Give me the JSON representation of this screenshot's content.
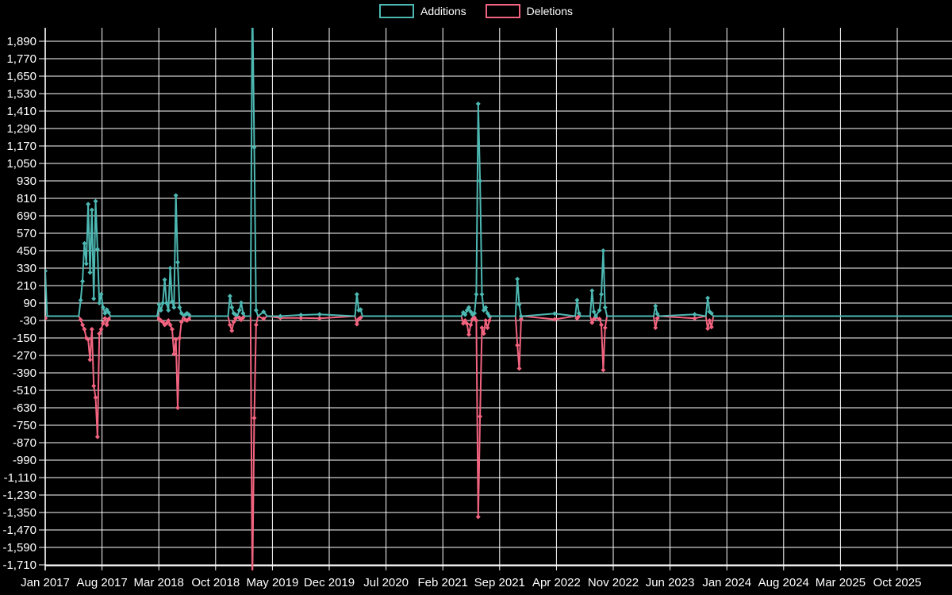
{
  "legend": {
    "additions_label": "Additions",
    "deletions_label": "Deletions"
  },
  "colors": {
    "additions": "#4db8b2",
    "deletions": "#f2637f",
    "background": "#000000",
    "grid": "#ffffff",
    "axis": "#ffffff",
    "text": "#ffffff"
  },
  "chart_data": {
    "type": "line",
    "title": "",
    "xlabel": "",
    "ylabel": "",
    "grid": true,
    "legend_position": "top-center",
    "x_axis": {
      "tick_labels": [
        "Jan 2017",
        "Aug 2017",
        "Mar 2018",
        "Oct 2018",
        "May 2019",
        "Dec 2019",
        "Jul 2020",
        "Feb 2021",
        "Sep 2021",
        "Apr 2022",
        "Nov 2022",
        "Jun 2023",
        "Jan 2024",
        "Aug 2024",
        "Mar 2025",
        "Oct 2025"
      ],
      "months_per_tick": 7
    },
    "y_axis": {
      "min": -1710,
      "max": 1890,
      "step": 120,
      "tick_labels": [
        "1,890",
        "1,770",
        "1,650",
        "1,530",
        "1,410",
        "1,290",
        "1,170",
        "1,050",
        "930",
        "810",
        "690",
        "570",
        "450",
        "330",
        "210",
        "90",
        "-30",
        "-150",
        "-270",
        "-390",
        "-510",
        "-630",
        "-750",
        "-870",
        "-990",
        "-1,110",
        "-1,230",
        "-1,350",
        "-1,470",
        "-1,590",
        "-1,710"
      ]
    },
    "series_names": [
      "Additions",
      "Deletions"
    ],
    "points_format": "[week_index_from_Jan_2017, additions, deletions, optional 0 = anchor point without marker]; peaks beyond axis range are clipped in the plot",
    "points": [
      [
        0,
        310,
        -15
      ],
      [
        1,
        0,
        0,
        0
      ],
      [
        18,
        0,
        0,
        0
      ],
      [
        19,
        110,
        -25
      ],
      [
        20,
        240,
        -60
      ],
      [
        21,
        500,
        -90
      ],
      [
        22,
        360,
        -150
      ],
      [
        23,
        770,
        -160
      ],
      [
        24,
        300,
        -300
      ],
      [
        25,
        730,
        -90
      ],
      [
        26,
        120,
        -480
      ],
      [
        27,
        790,
        -560
      ],
      [
        28,
        460,
        -830
      ],
      [
        29,
        90,
        -120
      ],
      [
        30,
        150,
        -90
      ],
      [
        31,
        60,
        -50
      ],
      [
        32,
        20,
        -15
      ],
      [
        33,
        45,
        -60
      ],
      [
        34,
        25,
        -20
      ],
      [
        35,
        0,
        0,
        0
      ],
      [
        60,
        0,
        0,
        0
      ],
      [
        61,
        80,
        -20
      ],
      [
        62,
        40,
        -30
      ],
      [
        63,
        90,
        -40
      ],
      [
        64,
        250,
        -60
      ],
      [
        65,
        90,
        -50
      ],
      [
        66,
        40,
        -30
      ],
      [
        67,
        330,
        -60
      ],
      [
        68,
        100,
        -90
      ],
      [
        69,
        60,
        -260
      ],
      [
        70,
        830,
        -160
      ],
      [
        71,
        370,
        -630
      ],
      [
        72,
        60,
        -150
      ],
      [
        73,
        20,
        -40
      ],
      [
        74,
        0,
        0,
        0
      ],
      [
        75,
        10,
        -25
      ],
      [
        76,
        20,
        -30
      ],
      [
        77,
        10,
        -20
      ],
      [
        78,
        0,
        0,
        0
      ],
      [
        98,
        0,
        0,
        0
      ],
      [
        99,
        138,
        -60
      ],
      [
        100,
        60,
        -100
      ],
      [
        101,
        20,
        -40
      ],
      [
        102,
        10,
        -15
      ],
      [
        103,
        0,
        0,
        0
      ],
      [
        104,
        40,
        -10
      ],
      [
        105,
        92,
        -25
      ],
      [
        106,
        20,
        -10
      ],
      [
        107,
        0,
        0,
        0
      ],
      [
        110,
        0,
        0,
        0
      ],
      [
        111,
        2200,
        -1850
      ],
      [
        112,
        1160,
        -700
      ],
      [
        113,
        40,
        -60
      ],
      [
        114,
        0,
        0,
        0
      ],
      [
        117,
        30,
        -18
      ],
      [
        119,
        0,
        0,
        0
      ],
      [
        126,
        0,
        -12
      ],
      [
        137,
        8,
        -12
      ],
      [
        147,
        12,
        -15
      ],
      [
        166,
        0,
        0,
        0
      ],
      [
        167,
        150,
        -55
      ],
      [
        168,
        40,
        -20
      ],
      [
        169,
        45,
        -10
      ],
      [
        170,
        0,
        0,
        0
      ],
      [
        223,
        0,
        0,
        0
      ],
      [
        224,
        25,
        -50
      ],
      [
        225,
        10,
        -30
      ],
      [
        226,
        40,
        -52
      ],
      [
        227,
        60,
        -127
      ],
      [
        228,
        30,
        -60
      ],
      [
        229,
        10,
        -20
      ],
      [
        230,
        20,
        -10
      ],
      [
        231,
        150,
        -30
      ],
      [
        232,
        1460,
        -1380
      ],
      [
        233,
        930,
        -690
      ],
      [
        234,
        150,
        -80
      ],
      [
        235,
        40,
        -120
      ],
      [
        236,
        60,
        -30
      ],
      [
        237,
        20,
        -80
      ],
      [
        238,
        0,
        -30
      ],
      [
        239,
        0,
        0,
        0
      ],
      [
        252,
        0,
        0,
        0
      ],
      [
        253,
        255,
        -200
      ],
      [
        254,
        80,
        -360
      ],
      [
        255,
        0,
        -20
      ],
      [
        256,
        0,
        0,
        0
      ],
      [
        273,
        18,
        -22
      ],
      [
        284,
        0,
        0,
        0
      ],
      [
        285,
        110,
        -15
      ],
      [
        286,
        20,
        0
      ],
      [
        287,
        0,
        0,
        0
      ],
      [
        292,
        0,
        0,
        0
      ],
      [
        293,
        175,
        -45
      ],
      [
        294,
        30,
        -20
      ],
      [
        295,
        0,
        -10
      ],
      [
        297,
        40,
        -20
      ],
      [
        298,
        150,
        -60
      ],
      [
        299,
        450,
        -370
      ],
      [
        300,
        60,
        -80
      ],
      [
        301,
        0,
        0,
        0
      ],
      [
        326,
        0,
        0,
        0
      ],
      [
        327,
        70,
        -80
      ],
      [
        328,
        15,
        -15
      ],
      [
        329,
        0,
        0,
        0
      ],
      [
        348,
        12,
        -15
      ],
      [
        354,
        0,
        0,
        0
      ],
      [
        355,
        125,
        -85
      ],
      [
        356,
        30,
        -30
      ],
      [
        357,
        20,
        -75
      ],
      [
        358,
        0,
        0,
        0
      ],
      [
        486,
        0,
        0,
        0
      ]
    ]
  }
}
